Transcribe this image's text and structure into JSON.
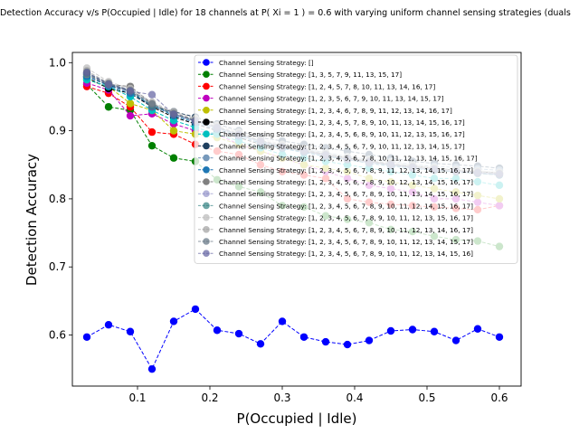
{
  "chart_data": {
    "type": "line",
    "title": "Detection Accuracy v/s P(Occupied | Idle) for 18 channels at P( Xi = 1 ) = 0.6 with varying uniform channel sensing strategies (duals",
    "xlabel": "P(Occupied | Idle)",
    "ylabel": "Detection Accuracy",
    "xlim": [
      0.01,
      0.63
    ],
    "ylim": [
      0.525,
      1.015
    ],
    "xticks": [
      "0.1",
      "0.2",
      "0.3",
      "0.4",
      "0.5",
      "0.6"
    ],
    "yticks": [
      "0.6",
      "0.7",
      "0.8",
      "0.9",
      "1.0"
    ],
    "legend_position": "upper-right",
    "x": [
      0.03,
      0.06,
      0.09,
      0.12,
      0.15,
      0.18,
      0.21,
      0.24,
      0.27,
      0.3,
      0.33,
      0.36,
      0.39,
      0.42,
      0.45,
      0.48,
      0.51,
      0.54,
      0.57,
      0.6
    ],
    "series": [
      {
        "name": "Channel Sensing Strategy: []",
        "color": "#0000ff",
        "alpha": 1.0,
        "values": [
          0.597,
          0.615,
          0.605,
          0.55,
          0.62,
          0.638,
          0.607,
          0.602,
          0.587,
          0.62,
          0.597,
          0.59,
          0.586,
          0.592,
          0.606,
          0.608,
          0.605,
          0.592,
          0.609,
          0.597
        ]
      },
      {
        "name": "Channel Sensing Strategy: [1, 3, 5, 7, 9, 11, 13, 15, 17]",
        "color": "#008000",
        "alpha": 1.0,
        "values": [
          0.968,
          0.935,
          0.93,
          0.878,
          0.86,
          0.855,
          0.828,
          0.818,
          0.81,
          0.79,
          0.788,
          0.775,
          0.77,
          0.765,
          0.755,
          0.752,
          0.745,
          0.74,
          0.738,
          0.73
        ]
      },
      {
        "name": "Channel Sensing Strategy: [1, 2, 4, 5, 7, 8, 10, 11, 13, 14, 16, 17]",
        "color": "#ff0000",
        "alpha": 1.0,
        "values": [
          0.965,
          0.955,
          0.935,
          0.898,
          0.895,
          0.88,
          0.87,
          0.865,
          0.85,
          0.84,
          0.835,
          0.83,
          0.8,
          0.795,
          0.792,
          0.79,
          0.788,
          0.786,
          0.784,
          0.79
        ]
      },
      {
        "name": "Channel Sensing Strategy: [1, 2, 3, 5, 6, 7, 9, 10, 11, 13, 14, 15, 17]",
        "color": "#bf00bf",
        "alpha": 1.0,
        "values": [
          0.97,
          0.96,
          0.922,
          0.925,
          0.91,
          0.9,
          0.895,
          0.88,
          0.87,
          0.86,
          0.85,
          0.84,
          0.83,
          0.82,
          0.815,
          0.81,
          0.8,
          0.8,
          0.795,
          0.79
        ]
      },
      {
        "name": "Channel Sensing Strategy: [1, 2, 3, 4, 6, 7, 8, 9, 11, 12, 13, 14, 16, 17]",
        "color": "#bfbf00",
        "alpha": 1.0,
        "values": [
          0.975,
          0.965,
          0.94,
          0.93,
          0.9,
          0.895,
          0.89,
          0.88,
          0.87,
          0.86,
          0.85,
          0.845,
          0.84,
          0.83,
          0.825,
          0.82,
          0.815,
          0.81,
          0.805,
          0.8
        ]
      },
      {
        "name": "Channel Sensing Strategy: [1, 2, 3, 4, 5, 7, 8, 9, 10, 11, 13, 14, 15, 16, 17]",
        "color": "#000000",
        "alpha": 1.0,
        "values": [
          0.978,
          0.962,
          0.955,
          0.935,
          0.92,
          0.91,
          0.9,
          0.89,
          0.88,
          0.875,
          0.87,
          0.865,
          0.86,
          0.855,
          0.85,
          0.848,
          0.845,
          0.842,
          0.84,
          0.838
        ]
      },
      {
        "name": "Channel Sensing Strategy: [1, 2, 3, 4, 5, 6, 8, 9, 10, 11, 12, 13, 15, 16, 17]",
        "color": "#00bfbf",
        "alpha": 1.0,
        "values": [
          0.975,
          0.965,
          0.95,
          0.93,
          0.915,
          0.905,
          0.895,
          0.885,
          0.875,
          0.865,
          0.86,
          0.855,
          0.85,
          0.845,
          0.84,
          0.835,
          0.83,
          0.83,
          0.825,
          0.82
        ]
      },
      {
        "name": "Channel Sensing Strategy: [1, 2, 3, 4, 5, 6, 7, 9, 10, 11, 12, 13, 14, 15, 17]",
        "color": "#1f3f5f",
        "alpha": 1.0,
        "values": [
          0.98,
          0.967,
          0.958,
          0.935,
          0.928,
          0.92,
          0.91,
          0.9,
          0.89,
          0.885,
          0.88,
          0.875,
          0.87,
          0.865,
          0.86,
          0.855,
          0.852,
          0.85,
          0.848,
          0.845
        ]
      },
      {
        "name": "Channel Sensing Strategy: [1, 2, 3, 4, 5, 6, 7, 8, 10, 11, 12, 13, 14, 15, 16, 17]",
        "color": "#7799bb",
        "alpha": 1.0,
        "values": [
          0.982,
          0.968,
          0.96,
          0.94,
          0.925,
          0.915,
          0.905,
          0.895,
          0.885,
          0.878,
          0.872,
          0.868,
          0.862,
          0.858,
          0.855,
          0.85,
          0.848,
          0.846,
          0.844,
          0.842
        ]
      },
      {
        "name": "Channel Sensing Strategy: [1, 2, 3, 4, 5, 6, 7, 8, 9, 11, 12, 13, 14, 15, 16, 17]",
        "color": "#1f77b4",
        "alpha": 1.0,
        "values": [
          0.98,
          0.966,
          0.955,
          0.938,
          0.922,
          0.912,
          0.902,
          0.892,
          0.882,
          0.874,
          0.868,
          0.862,
          0.858,
          0.852,
          0.848,
          0.845,
          0.842,
          0.84,
          0.838,
          0.835
        ]
      },
      {
        "name": "Channel Sensing Strategy: [1, 2, 3, 4, 5, 6, 7, 8, 9, 10, 12, 13, 14, 15, 16, 17]",
        "color": "#808080",
        "alpha": 1.0,
        "values": [
          0.983,
          0.968,
          0.965,
          0.94,
          0.926,
          0.916,
          0.906,
          0.896,
          0.886,
          0.878,
          0.872,
          0.866,
          0.86,
          0.856,
          0.852,
          0.848,
          0.845,
          0.842,
          0.84,
          0.838
        ]
      },
      {
        "name": "Channel Sensing Strategy: [1, 2, 3, 4, 5, 6, 7, 8, 9, 10, 11, 13, 14, 15, 16, 17]",
        "color": "#8080c0",
        "alpha": 0.6,
        "values": [
          0.985,
          0.97,
          0.96,
          0.935,
          0.925,
          0.915,
          0.905,
          0.895,
          0.885,
          0.876,
          0.87,
          0.864,
          0.858,
          0.854,
          0.85,
          0.846,
          0.843,
          0.84,
          0.838,
          0.836
        ]
      },
      {
        "name": "Channel Sensing Strategy: [1, 2, 3, 4, 5, 6, 7, 8, 9, 10, 11, 12, 14, 15, 16, 17]",
        "color": "#2f7f7f",
        "alpha": 0.7,
        "values": [
          0.984,
          0.969,
          0.958,
          0.937,
          0.924,
          0.914,
          0.904,
          0.894,
          0.884,
          0.875,
          0.869,
          0.863,
          0.857,
          0.853,
          0.849,
          0.845,
          0.842,
          0.839,
          0.837,
          0.835
        ]
      },
      {
        "name": "Channel Sensing Strategy: [1, 2, 3, 4, 5, 6, 7, 8, 9, 10, 11, 12, 13, 15, 16, 17]",
        "color": "#c0c0c0",
        "alpha": 0.8,
        "values": [
          0.992,
          0.972,
          0.962,
          0.942,
          0.928,
          0.918,
          0.908,
          0.898,
          0.888,
          0.88,
          0.874,
          0.868,
          0.862,
          0.858,
          0.854,
          0.85,
          0.846,
          0.843,
          0.841,
          0.839
        ]
      },
      {
        "name": "Channel Sensing Strategy: [1, 2, 3, 4, 5, 6, 7, 8, 9, 10, 11, 12, 13, 14, 16, 17]",
        "color": "#a0a0a0",
        "alpha": 0.7,
        "values": [
          0.988,
          0.97,
          0.96,
          0.94,
          0.926,
          0.916,
          0.906,
          0.896,
          0.886,
          0.878,
          0.872,
          0.866,
          0.86,
          0.856,
          0.852,
          0.848,
          0.845,
          0.842,
          0.84,
          0.838
        ]
      },
      {
        "name": "Channel Sensing Strategy: [1, 2, 3, 4, 5, 6, 7, 8, 9, 10, 11, 12, 13, 14, 15, 17]",
        "color": "#607080",
        "alpha": 0.7,
        "values": [
          0.986,
          0.969,
          0.959,
          0.939,
          0.925,
          0.915,
          0.905,
          0.895,
          0.885,
          0.877,
          0.871,
          0.865,
          0.859,
          0.855,
          0.851,
          0.847,
          0.844,
          0.841,
          0.839,
          0.837
        ]
      },
      {
        "name": "Channel Sensing Strategy: [1, 2, 3, 4, 5, 6, 7, 8, 9, 10, 11, 12, 13, 14, 15, 16]",
        "color": "#6060a0",
        "alpha": 0.7,
        "values": [
          0.985,
          0.968,
          0.958,
          0.953,
          0.924,
          0.914,
          0.904,
          0.894,
          0.884,
          0.876,
          0.87,
          0.864,
          0.858,
          0.854,
          0.85,
          0.846,
          0.843,
          0.84,
          0.838,
          0.836
        ]
      }
    ]
  }
}
